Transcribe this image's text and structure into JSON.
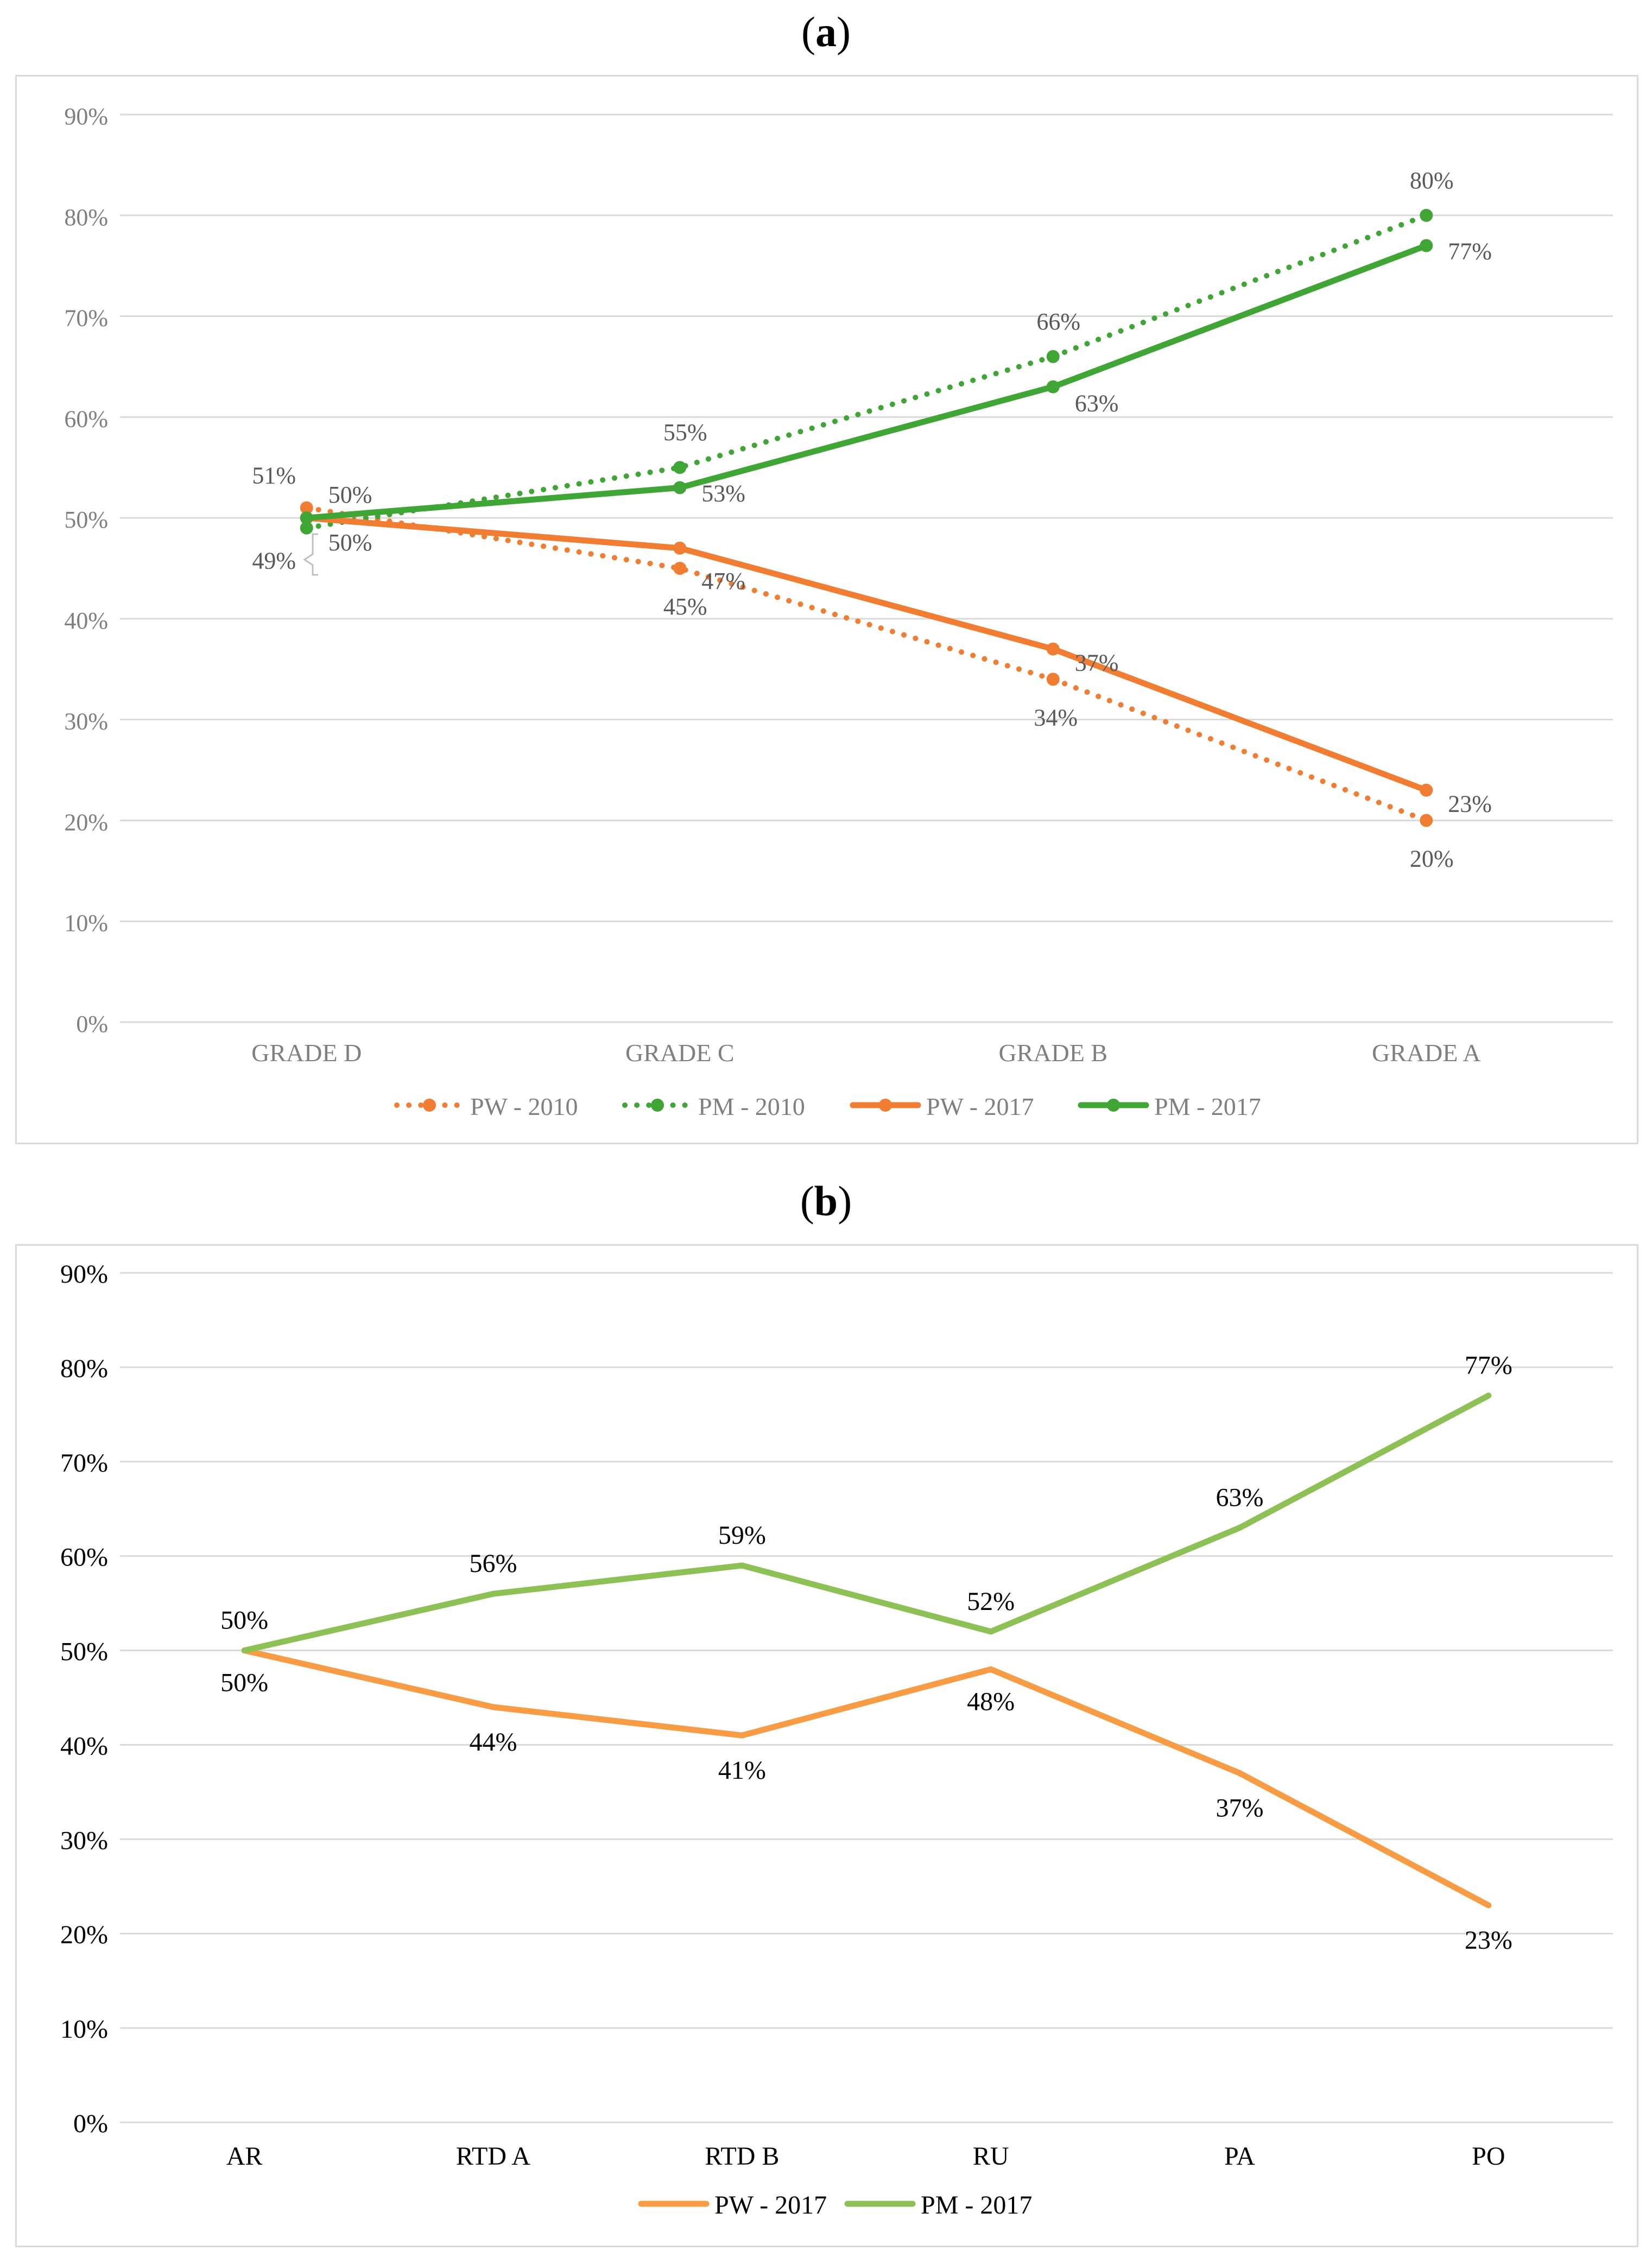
{
  "chart_data": [
    {
      "panel_label": "a",
      "type": "line",
      "categories": [
        "GRADE D",
        "GRADE C",
        "GRADE B",
        "GRADE A"
      ],
      "ylim": [
        0,
        90
      ],
      "y_ticks": [
        "0%",
        "10%",
        "20%",
        "30%",
        "40%",
        "50%",
        "60%",
        "70%",
        "80%",
        "90%"
      ],
      "grid": true,
      "legend_position": "bottom",
      "series": [
        {
          "name": "PW - 2010",
          "style": "dotted",
          "color": "#F07D32",
          "values": [
            51,
            45,
            34,
            20
          ],
          "labels": [
            "51%",
            "45%",
            "34%",
            "20%"
          ]
        },
        {
          "name": "PM - 2010",
          "style": "dotted",
          "color": "#3FA535",
          "values": [
            49,
            55,
            66,
            80
          ],
          "labels": [
            "49%",
            "55%",
            "66%",
            "80%"
          ]
        },
        {
          "name": "PW - 2017",
          "style": "solid",
          "color": "#F07D32",
          "values": [
            50,
            47,
            37,
            23
          ],
          "labels": [
            "50%",
            "47%",
            "37%",
            "23%"
          ]
        },
        {
          "name": "PM - 2017",
          "style": "solid",
          "color": "#3FA535",
          "values": [
            50,
            53,
            63,
            77
          ],
          "labels": [
            "50%",
            "53%",
            "63%",
            "77%"
          ]
        }
      ]
    },
    {
      "panel_label": "b",
      "type": "line",
      "categories": [
        "AR",
        "RTD A",
        "RTD B",
        "RU",
        "PA",
        "PO"
      ],
      "ylim": [
        0,
        90
      ],
      "y_ticks": [
        "0%",
        "10%",
        "20%",
        "30%",
        "40%",
        "50%",
        "60%",
        "70%",
        "80%",
        "90%"
      ],
      "grid": true,
      "legend_position": "bottom",
      "series": [
        {
          "name": "PW - 2017",
          "style": "solid",
          "color": "#F79B45",
          "values": [
            50,
            44,
            41,
            48,
            37,
            23
          ],
          "labels": [
            "50%",
            "44%",
            "41%",
            "48%",
            "37%",
            "23%"
          ]
        },
        {
          "name": "PM - 2017",
          "style": "solid",
          "color": "#8DC055",
          "values": [
            50,
            56,
            59,
            52,
            63,
            77
          ],
          "labels": [
            "50%",
            "56%",
            "59%",
            "52%",
            "63%",
            "77%"
          ]
        }
      ]
    }
  ]
}
